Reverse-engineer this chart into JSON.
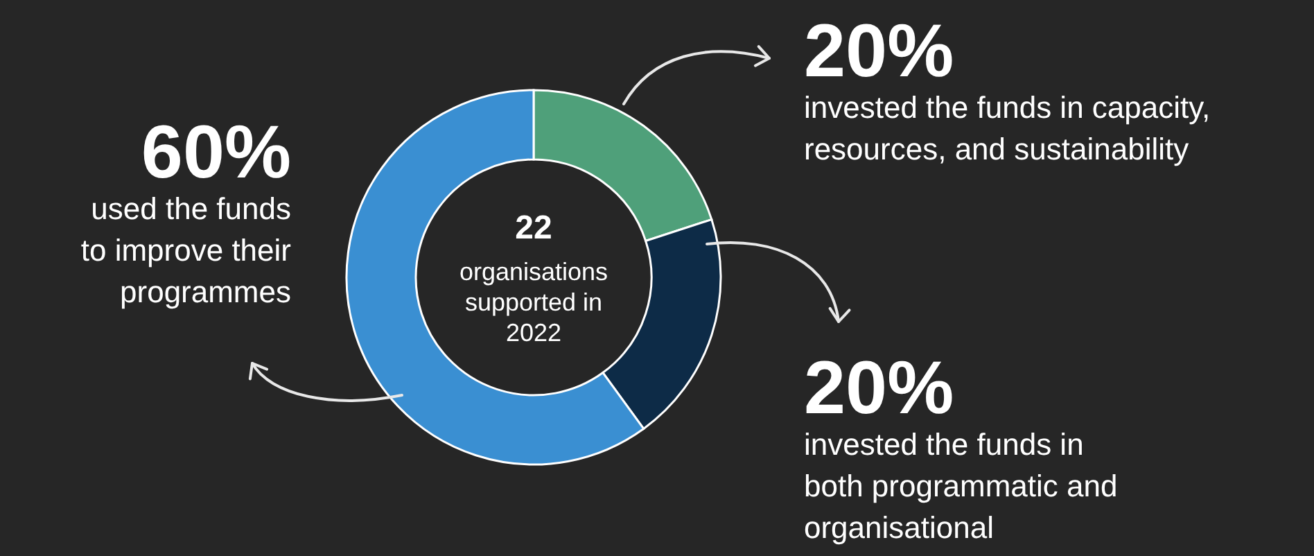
{
  "chart_data": {
    "type": "donut",
    "categories": [
      "invested the funds in capacity, resources, and sustainability",
      "invested the funds in both programmatic and organisational",
      "used the funds to improve their programmes"
    ],
    "values": [
      20,
      20,
      60
    ],
    "value_labels": [
      "20%",
      "20%",
      "60%"
    ],
    "colors": [
      "#4fa07a",
      "#0d2b47",
      "#3a8fd2"
    ],
    "annotations": [
      "22",
      "organisations supported in 2022"
    ]
  }
}
